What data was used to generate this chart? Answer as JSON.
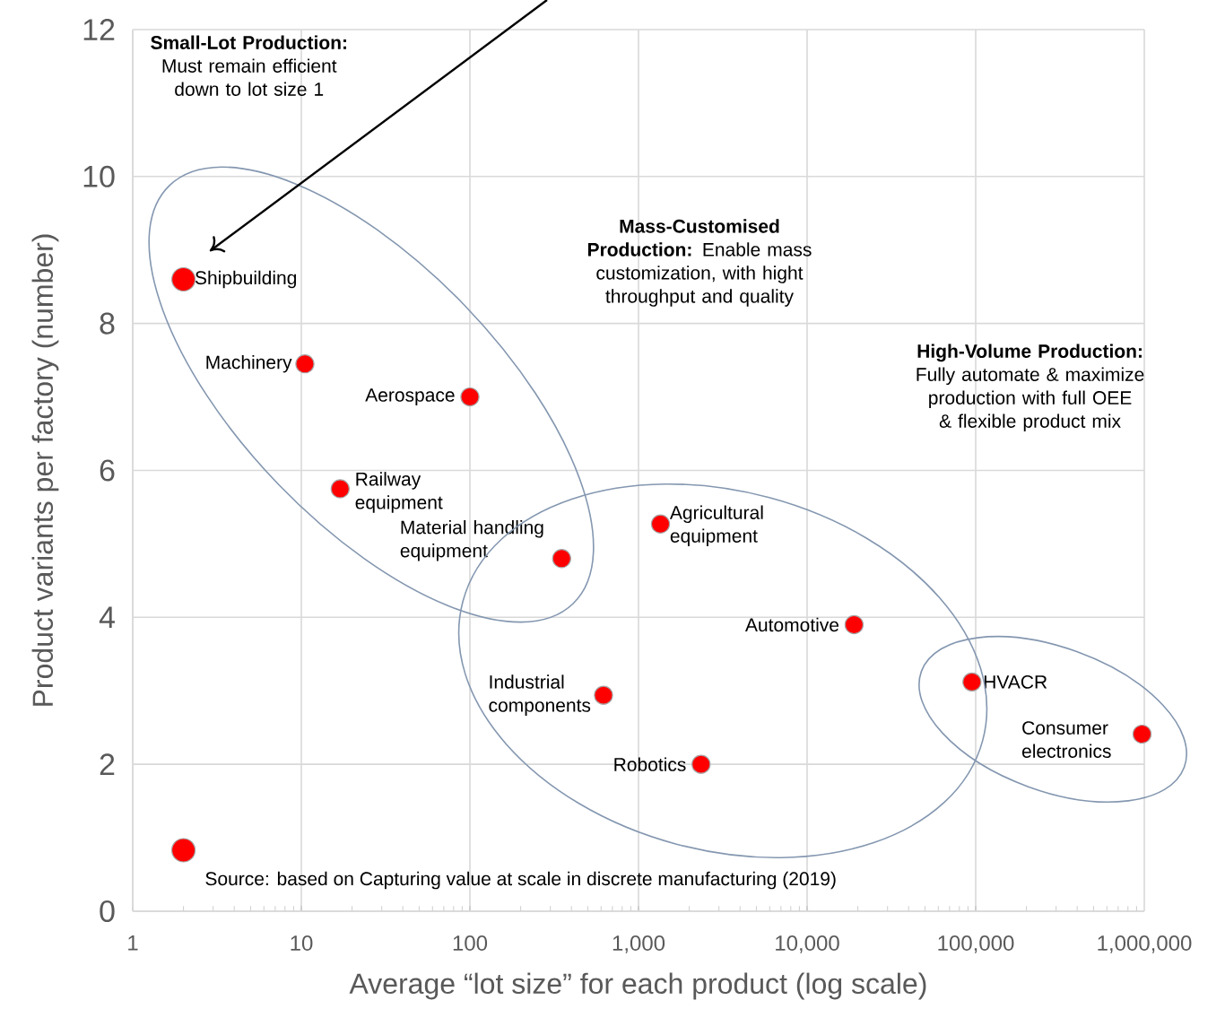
{
  "chart_data": {
    "type": "bubble",
    "xlabel": "Average “lot size” for each product (log scale)",
    "ylabel": "Product variants per factory (number)",
    "log": "x",
    "grid": true,
    "xlim": [
      1,
      1000000
    ],
    "ylim": [
      0,
      12
    ],
    "xticks": [
      1,
      10,
      100,
      {
        "value": 1000,
        "label": "1,000"
      },
      {
        "value": 10000,
        "label": "10,000"
      },
      {
        "value": 100000,
        "label": "100,000"
      },
      {
        "value": 1000000,
        "label": "1,000,000"
      }
    ],
    "yticks": [
      0,
      2,
      4,
      6,
      8,
      10,
      12
    ],
    "series": [
      {
        "color": "#ff0000",
        "x": [
          2,
          10.5,
          100,
          17,
          350,
          1350,
          19000,
          620,
          2350,
          95000,
          970000,
          2
        ],
        "values": [
          8.6,
          7.45,
          7.0,
          5.75,
          4.8,
          5.27,
          3.9,
          2.94,
          2.0,
          3.12,
          2.41,
          0.83
        ],
        "sizes": [
          1,
          0.6,
          0.6,
          0.6,
          0.6,
          0.6,
          0.6,
          0.6,
          0.6,
          0.6,
          0.6,
          1
        ]
      }
    ],
    "annotations": [
      {
        "text": "Shipbuilding",
        "x": 2,
        "y": 8.6
      },
      {
        "text": "Machinery",
        "x": 10.5,
        "y": 7.45
      },
      {
        "text": "Aerospace",
        "x": 100,
        "y": 7.0
      },
      {
        "text": "Railway equipment",
        "x": 17,
        "y": 5.75
      },
      {
        "text": "Material handling equipment",
        "x": 350,
        "y": 4.8
      },
      {
        "text": "Agricultural equipment",
        "x": 1350,
        "y": 5.27
      },
      {
        "text": "Automotive",
        "x": 19000,
        "y": 3.9
      },
      {
        "text": "Industrial components",
        "x": 620,
        "y": 2.94
      },
      {
        "text": "Robotics",
        "x": 2350,
        "y": 2.0
      },
      {
        "text": "HVACR",
        "x": 95000,
        "y": 3.12
      },
      {
        "text": "Consumer electronics",
        "x": 970000,
        "y": 2.41
      },
      "**Small-Lot Production:** Must remain efficient down to lot size 1",
      "**Mass-Customised Production:** Enable mass customization, with hight throughput and quality",
      "**High-Volume Production:** Fully automate & maximize production with full OEE & flexible product mix",
      "Source: based on Capturing value at scale in discrete manufacturing (2019)"
    ]
  }
}
